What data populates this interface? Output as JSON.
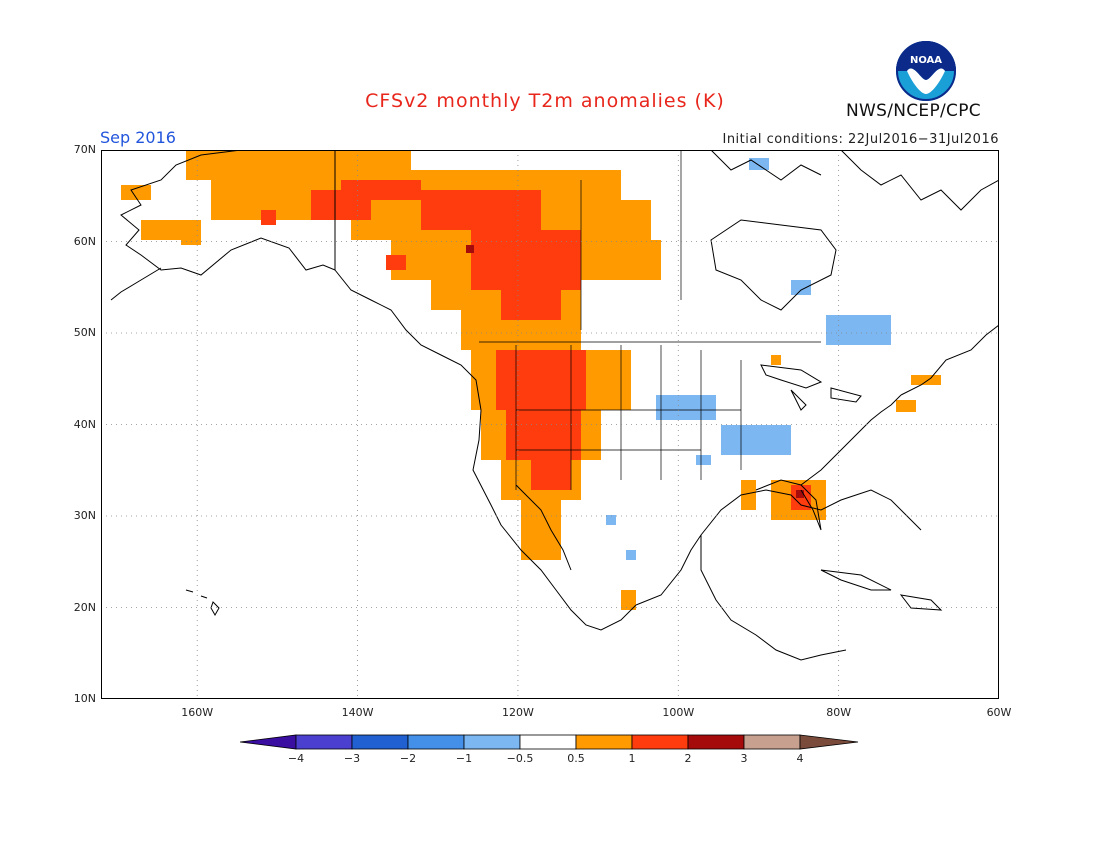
{
  "header": {
    "title": "CFSv2 monthly T2m anomalies (K)",
    "period": "Sep 2016",
    "initial_conditions": "Initial conditions: 22Jul2016−31Jul2016",
    "agency": "NWS/NCEP/CPC",
    "logo_text": "NOAA"
  },
  "axes": {
    "lat_labels": [
      "70N",
      "60N",
      "50N",
      "40N",
      "30N",
      "20N",
      "10N"
    ],
    "lon_labels": [
      "160W",
      "140W",
      "120W",
      "100W",
      "80W",
      "60W"
    ]
  },
  "colorbar": {
    "tick_labels": [
      "−4",
      "−3",
      "−2",
      "−1",
      "−0.5",
      "0.5",
      "1",
      "2",
      "3",
      "4"
    ],
    "colors": [
      "#3a0ea0",
      "#4b3fd0",
      "#2060d0",
      "#4490e8",
      "#7cb7f2",
      "#ffffff",
      "#ff9a00",
      "#ff3c0d",
      "#a50b0b",
      "#c8a08f",
      "#7a4a3a"
    ]
  },
  "colors": {
    "anom_0_5_1": "#ff9a00",
    "anom_1_2": "#ff3c0d",
    "anom_2_3": "#a50b0b",
    "anom_neg_0_5_1": "#7cb7f2"
  }
}
